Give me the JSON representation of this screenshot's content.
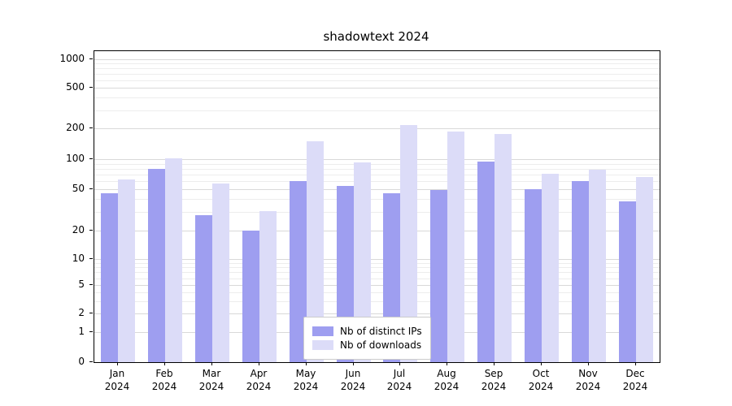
{
  "chart_data": {
    "type": "bar",
    "title": "shadowtext 2024",
    "categories": [
      "Jan\n2024",
      "Feb\n2024",
      "Mar\n2024",
      "Apr\n2024",
      "May\n2024",
      "Jun\n2024",
      "Jul\n2024",
      "Aug\n2024",
      "Sep\n2024",
      "Oct\n2024",
      "Nov\n2024",
      "Dec\n2024"
    ],
    "series": [
      {
        "name": "Nb of distinct IPs",
        "color": "#9e9ef0",
        "values": [
          46,
          80,
          28,
          20,
          60,
          54,
          46,
          49,
          95,
          50,
          60,
          38
        ]
      },
      {
        "name": "Nb of downloads",
        "color": "#dcdcf8",
        "values": [
          63,
          102,
          57,
          31,
          150,
          92,
          215,
          185,
          175,
          71,
          79,
          66
        ]
      }
    ],
    "yscale": "symlog",
    "yticks": [
      0,
      1,
      2,
      5,
      10,
      20,
      50,
      100,
      200,
      500,
      1000
    ],
    "yminorticks": [
      3,
      4,
      6,
      7,
      8,
      9,
      30,
      40,
      60,
      70,
      80,
      90,
      300,
      400,
      600,
      700,
      800,
      900
    ],
    "ylim": [
      0,
      1200
    ],
    "xlabel": "",
    "ylabel": "",
    "grid": true,
    "legend_position": "lower center",
    "colors": {
      "grid_major": "#d9d9d9",
      "grid_minor": "#ededed",
      "axis": "#000000",
      "background": "#ffffff"
    }
  }
}
